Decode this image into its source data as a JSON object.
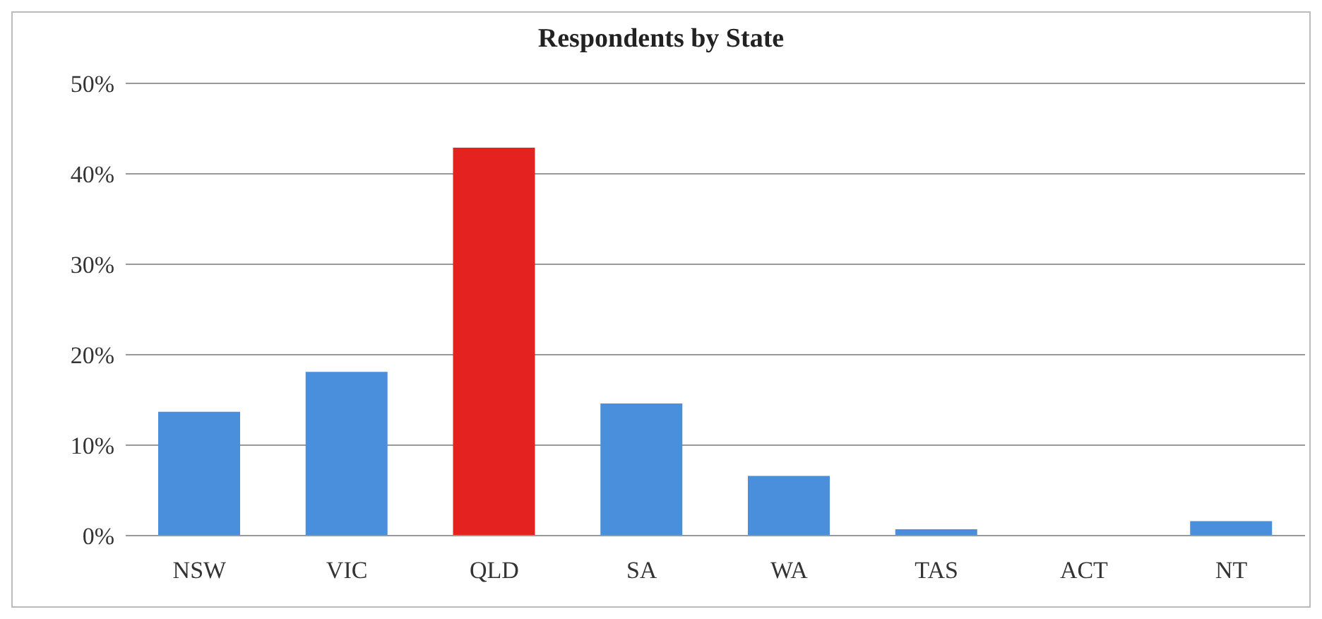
{
  "chart_data": {
    "type": "bar",
    "title": "Respondents by State",
    "categories": [
      "NSW",
      "VIC",
      "QLD",
      "SA",
      "WA",
      "TAS",
      "ACT",
      "NT"
    ],
    "values": [
      13.7,
      18.1,
      42.9,
      14.6,
      6.6,
      0.7,
      0,
      1.6
    ],
    "colors": [
      "#4a8fdb",
      "#4a8fdb",
      "#e42320",
      "#4a8fdb",
      "#4a8fdb",
      "#4a8fdb",
      "#4a8fdb",
      "#4a8fdb"
    ],
    "ylim": [
      0,
      50
    ],
    "yticks": [
      {
        "value": 0,
        "label": "0%"
      },
      {
        "value": 10,
        "label": "10%"
      },
      {
        "value": 20,
        "label": "20%"
      },
      {
        "value": 30,
        "label": "30%"
      },
      {
        "value": 40,
        "label": "40%"
      },
      {
        "value": 50,
        "label": "50%"
      }
    ],
    "grid": "y",
    "legend": false
  }
}
